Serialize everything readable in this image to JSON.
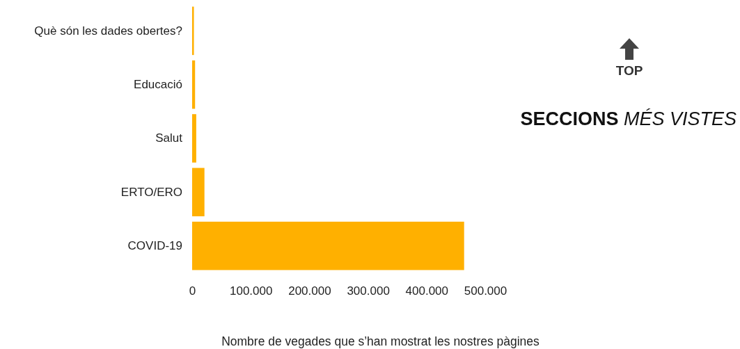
{
  "chart_data": {
    "type": "bar",
    "orientation": "horizontal",
    "title": "SECCIONS MÉS VISTES",
    "categories": [
      "Què són les dades obertes?",
      "Educació",
      "Salut",
      "ERTO/ERO",
      "COVID-19"
    ],
    "values": [
      3000,
      5000,
      7000,
      21000,
      464000
    ],
    "color": "#ffb000",
    "xlim": [
      0,
      500000
    ],
    "xticks": [
      0,
      {
        "value": 100000,
        "label": "100.000"
      },
      {
        "value": 200000,
        "label": "200.000"
      },
      {
        "value": 300000,
        "label": "300.000"
      },
      {
        "value": 400000,
        "label": "400.000"
      },
      {
        "value": 500000,
        "label": "500.000"
      }
    ],
    "xlabel": "Nombre de vegades que s’han mostrat les nostres pàgines",
    "annotations": [
      "TOP"
    ],
    "grid": false
  }
}
